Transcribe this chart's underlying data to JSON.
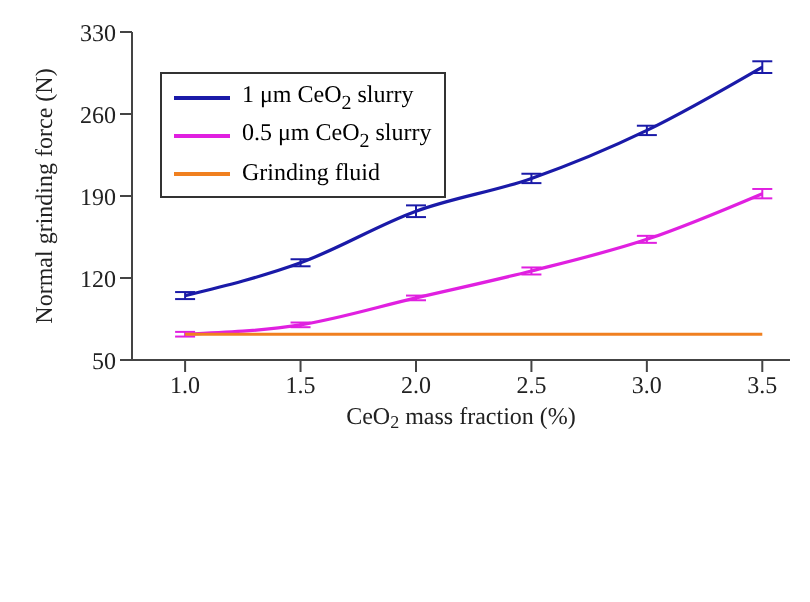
{
  "chart_data": {
    "type": "line",
    "xlabel": "CeO$_{2}$ mass fraction (%)",
    "ylabel": "Normal grinding force (N)",
    "x": [
      1.0,
      1.5,
      2.0,
      2.5,
      3.0,
      3.5
    ],
    "series": [
      {
        "name": "1 μm CeO$_{2}$ slurry",
        "color": "#1a1aa8",
        "values": [
          105,
          133,
          177,
          205,
          246,
          300
        ],
        "errors": [
          3,
          3,
          5,
          4,
          4,
          5
        ]
      },
      {
        "name": "0.5 μm CeO$_{2}$ slurry",
        "color": "#e020e0",
        "values": [
          72,
          80,
          103,
          126,
          153,
          192
        ],
        "errors": [
          2,
          2,
          2,
          3,
          3,
          4
        ]
      },
      {
        "name": "Grinding fluid",
        "color": "#f08020",
        "values": [
          72,
          72,
          72,
          72,
          72,
          72
        ]
      }
    ],
    "xlim": [
      0.77,
      3.62
    ],
    "xticks": [
      {
        "value": 1.0,
        "label": "1.0"
      },
      {
        "value": 1.5,
        "label": "1.5"
      },
      {
        "value": 2.0,
        "label": "2.0"
      },
      {
        "value": 2.5,
        "label": "2.5"
      },
      {
        "value": 3.0,
        "label": "3.0"
      },
      {
        "value": 3.5,
        "label": "3.5"
      }
    ],
    "ylim": [
      50,
      330
    ],
    "yticks": [
      50,
      120,
      190,
      260,
      330
    ],
    "grid": false,
    "legend": "top left",
    "marker": "none",
    "line_style": "solid"
  }
}
